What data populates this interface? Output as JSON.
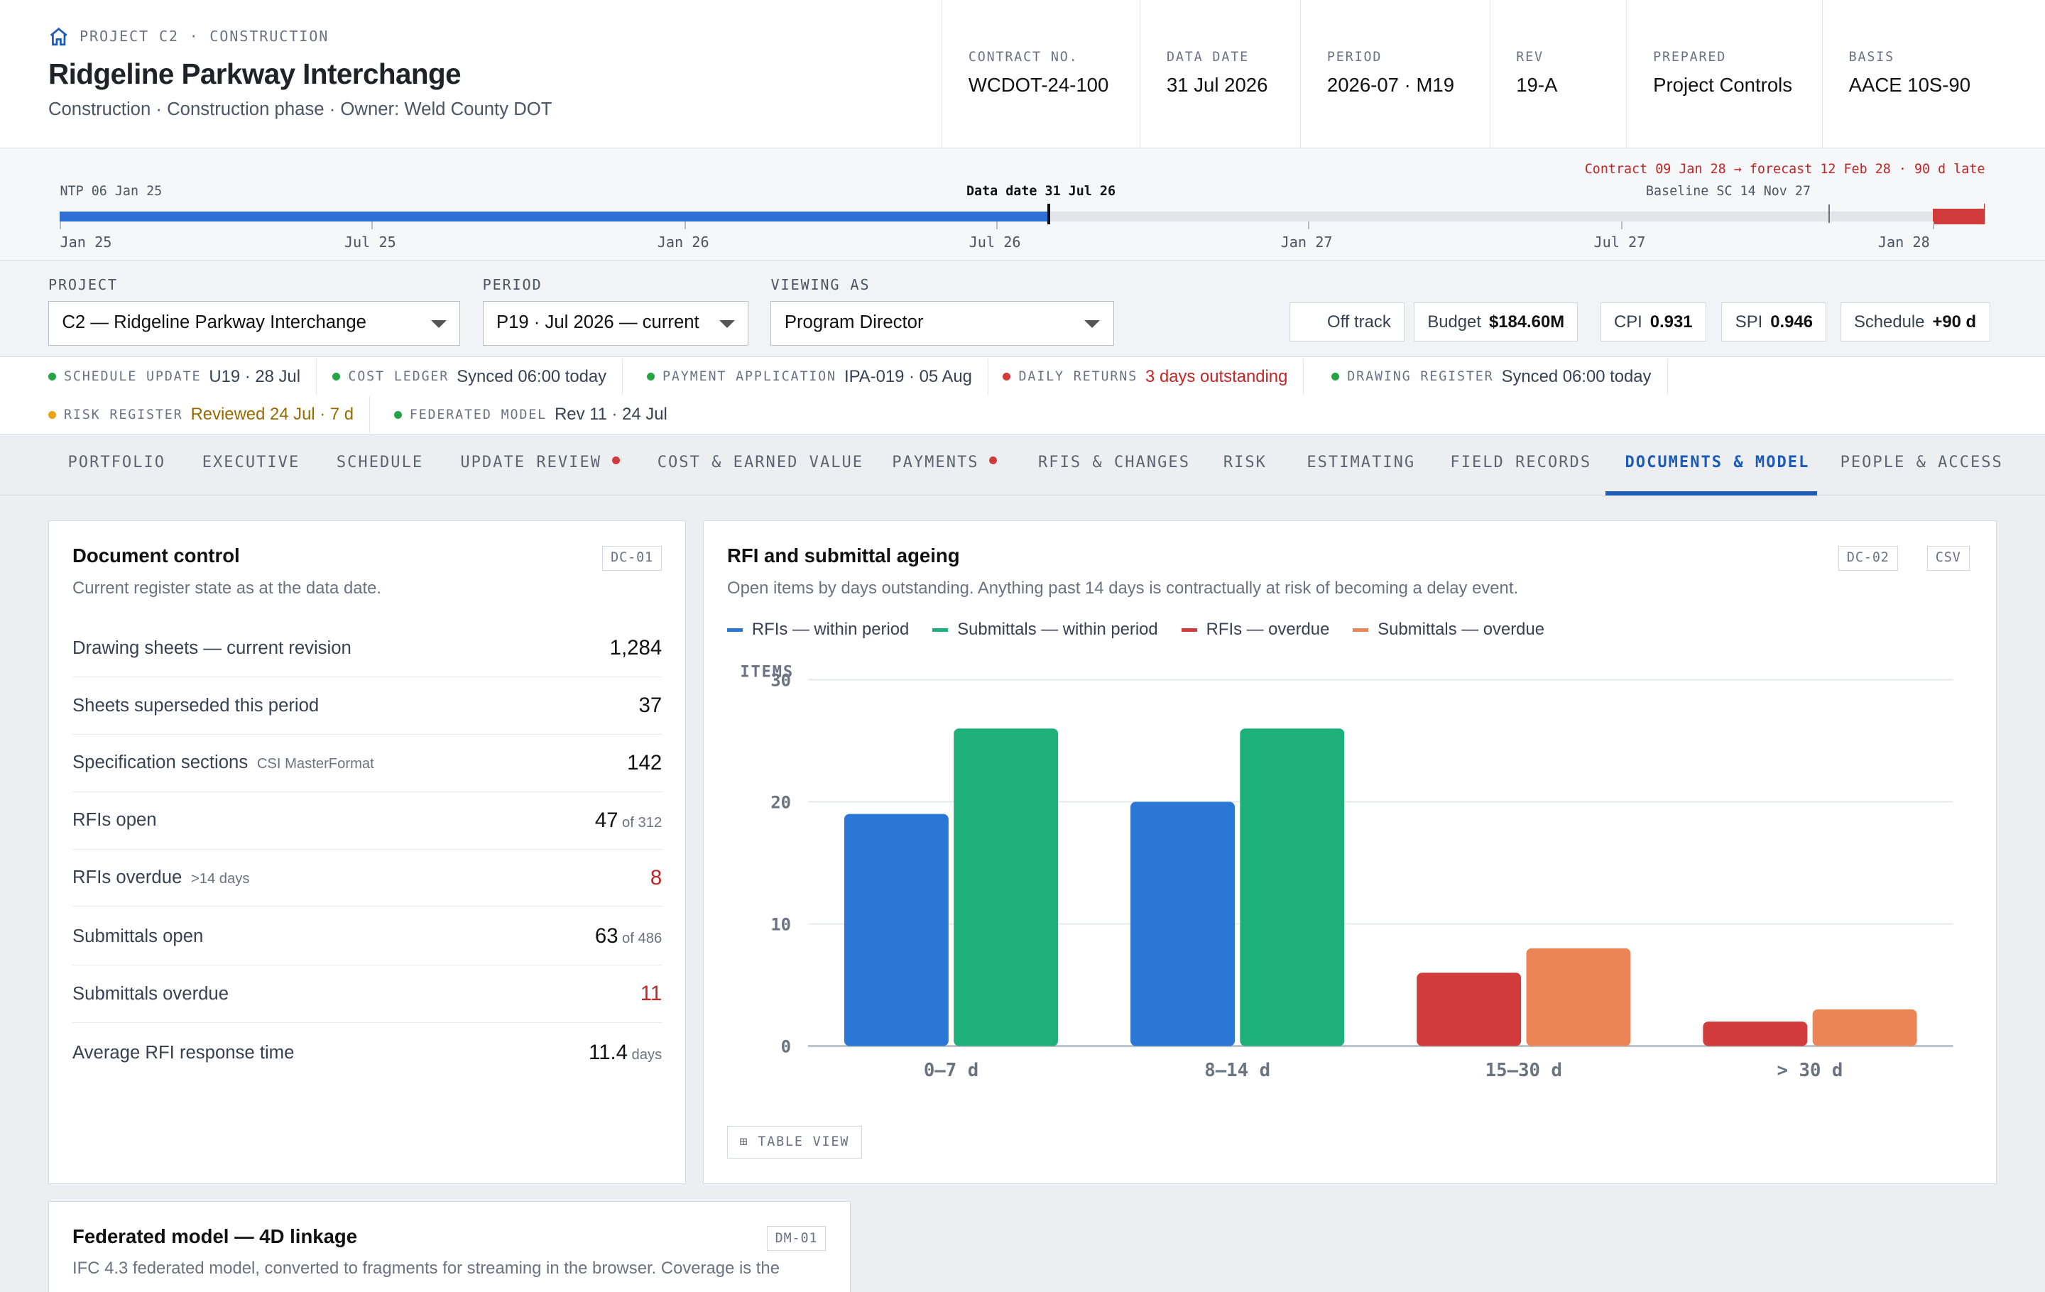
{
  "header": {
    "eyebrow_project": "PROJECT C2",
    "eyebrow_sep": "·",
    "eyebrow_phase": "CONSTRUCTION",
    "title": "Ridgeline Parkway Interchange",
    "subtitle": "Construction · Construction phase · Owner: Weld County DOT",
    "meta": [
      {
        "label": "CONTRACT NO.",
        "value": "WCDOT-24-100"
      },
      {
        "label": "DATA DATE",
        "value": "31 Jul 2026"
      },
      {
        "label": "PERIOD",
        "value": "2026-07 · M19"
      },
      {
        "label": "REV",
        "value": "19-A"
      },
      {
        "label": "PREPARED",
        "value": "Project Controls"
      },
      {
        "label": "BASIS",
        "value": "AACE 10S-90"
      }
    ]
  },
  "timeline": {
    "ntp": "NTP 06 Jan 25",
    "data_date": "Data date 31 Jul 26",
    "contract_note": "Contract 09 Jan 28 → forecast 12 Feb 28 · 90 d late",
    "baseline": "Baseline SC 14 Nov 27",
    "progress_fraction": 0.514,
    "ticks": [
      "Jan 25",
      "Jul 25",
      "Jan 26",
      "Jul 26",
      "Jan 27",
      "Jul 27",
      "Jan 28"
    ]
  },
  "filters": {
    "project_label": "PROJECT",
    "project_value": "C2 — Ridgeline Parkway Interchange",
    "period_label": "PERIOD",
    "period_value": "P19 · Jul 2026 — current",
    "viewing_label": "VIEWING AS",
    "viewing_value": "Program Director",
    "status": "Off track",
    "kpis": [
      {
        "label": "Budget",
        "value": "$184.60M"
      },
      {
        "label": "CPI",
        "value": "0.931"
      },
      {
        "label": "SPI",
        "value": "0.946"
      },
      {
        "label": "Schedule",
        "value": "+90 d"
      }
    ]
  },
  "sources": [
    {
      "label": "SCHEDULE UPDATE",
      "value": "U19 · 28 Jul",
      "color": "#22a447"
    },
    {
      "label": "COST LEDGER",
      "value": "Synced 06:00 today",
      "color": "#22a447"
    },
    {
      "label": "PAYMENT APPLICATION",
      "value": "IPA-019 · 05 Aug",
      "color": "#22a447"
    },
    {
      "label": "DAILY RETURNS",
      "value": "3 days outstanding",
      "color": "#d13b3b"
    },
    {
      "label": "DRAWING REGISTER",
      "value": "Synced 06:00 today",
      "color": "#22a447"
    },
    {
      "label": "RISK REGISTER",
      "value": "Reviewed 24 Jul · 7 d",
      "color": "#e8a317"
    },
    {
      "label": "FEDERATED MODEL",
      "value": "Rev 11 · 24 Jul",
      "color": "#22a447"
    }
  ],
  "tabs": [
    {
      "label": "PORTFOLIO"
    },
    {
      "label": "EXECUTIVE"
    },
    {
      "label": "SCHEDULE"
    },
    {
      "label": "UPDATE REVIEW"
    },
    {
      "label": "COST & EARNED VALUE"
    },
    {
      "label": "PAYMENTS"
    },
    {
      "label": "RFIS & CHANGES"
    },
    {
      "label": "RISK"
    },
    {
      "label": "ESTIMATING"
    },
    {
      "label": "FIELD RECORDS"
    },
    {
      "label": "DOCUMENTS & MODEL"
    },
    {
      "label": "PEOPLE & ACCESS"
    }
  ],
  "doc_control": {
    "title": "Document control",
    "tag": "DC-01",
    "subtitle": "Current register state as at the data date.",
    "rows": [
      {
        "label": "Drawing sheets — current revision",
        "note": "",
        "value": "1,284",
        "suffix": ""
      },
      {
        "label": "Sheets superseded this period",
        "note": "",
        "value": "37",
        "suffix": ""
      },
      {
        "label": "Specification sections",
        "note": "CSI MasterFormat",
        "value": "142",
        "suffix": ""
      },
      {
        "label": "RFIs open",
        "note": "",
        "value": "47",
        "suffix": "of 312"
      },
      {
        "label": "RFIs overdue",
        "note": ">14 days",
        "value": "8",
        "suffix": ""
      },
      {
        "label": "Submittals open",
        "note": "",
        "value": "63",
        "suffix": "of 486"
      },
      {
        "label": "Submittals overdue",
        "note": "",
        "value": "11",
        "suffix": ""
      },
      {
        "label": "Average RFI response time",
        "note": "",
        "value": "11.4",
        "suffix": "days"
      }
    ]
  },
  "ageing": {
    "title": "RFI and submittal ageing",
    "tag": "DC-02",
    "csv": "CSV",
    "subtitle": "Open items by days outstanding. Anything past 14 days is contractually at risk of becoming a delay event.",
    "table_view": "⊞ TABLE VIEW"
  },
  "chart_data": {
    "type": "bar",
    "ylabel": "ITEMS",
    "ylim": [
      0,
      30
    ],
    "yticks": [
      0,
      10,
      20,
      30
    ],
    "grid": true,
    "legend": "top-left",
    "categories": [
      "0–7 d",
      "8–14 d",
      "15–30 d",
      "> 30 d"
    ],
    "series": [
      {
        "name": "RFIs — within period",
        "color": "#2b77d6",
        "values": [
          19,
          20,
          null,
          null
        ]
      },
      {
        "name": "Submittals — within period",
        "color": "#1db07b",
        "values": [
          26,
          26,
          null,
          null
        ]
      },
      {
        "name": "RFIs — overdue",
        "color": "#d13b3b",
        "values": [
          null,
          null,
          6,
          2
        ]
      },
      {
        "name": "Submittals — overdue",
        "color": "#ec8556",
        "values": [
          null,
          null,
          8,
          3
        ]
      }
    ]
  },
  "model": {
    "title": "Federated model — 4D linkage",
    "tag": "DM-01",
    "subtitle": "IFC 4.3 federated model, converted to fragments for streaming in the browser. Coverage is the"
  }
}
